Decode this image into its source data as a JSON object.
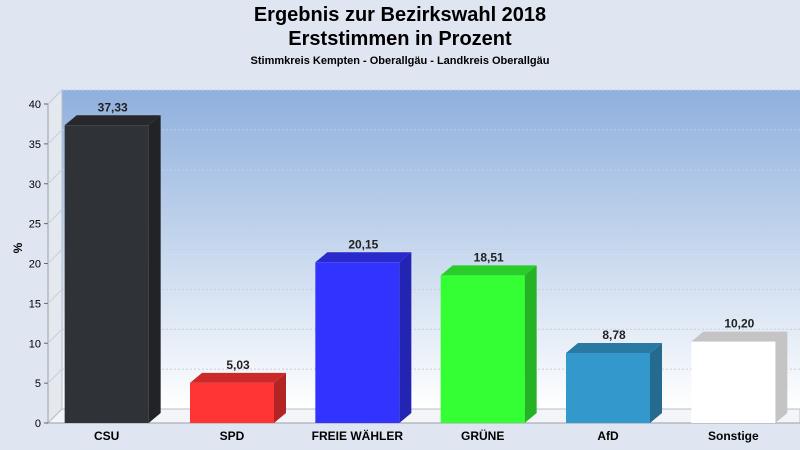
{
  "title": "Ergebnis zur Bezirkswahl 2018",
  "subtitle": "Erststimmen in Prozent",
  "subsubtitle": "Stimmkreis Kempten - Oberallgäu - Landkreis Oberallgäu",
  "chart_data": {
    "type": "bar",
    "categories": [
      "CSU",
      "SPD",
      "FREIE WÄHLER",
      "GRÜNE",
      "AfD",
      "Sonstige"
    ],
    "values": [
      37.33,
      5.03,
      20.15,
      18.51,
      8.78,
      10.2
    ],
    "value_labels": [
      "37,33",
      "5,03",
      "20,15",
      "18,51",
      "8,78",
      "10,20"
    ],
    "colors": [
      "#2f3237",
      "#ff3535",
      "#3333ff",
      "#33ff33",
      "#3399cc",
      "#ffffff"
    ],
    "ylabel": "%",
    "ylim": [
      0,
      40
    ],
    "yticks": [
      0,
      5,
      10,
      15,
      20,
      25,
      30,
      35,
      40
    ],
    "grid": true
  }
}
